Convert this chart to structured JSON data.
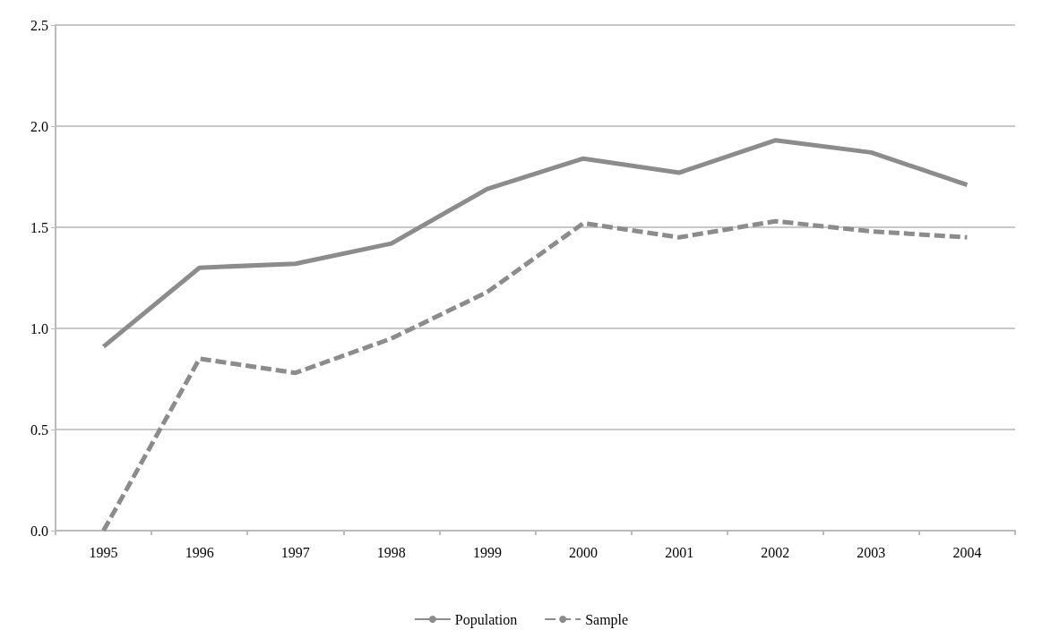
{
  "chart_data": {
    "type": "line",
    "categories": [
      "1995",
      "1996",
      "1997",
      "1998",
      "1999",
      "2000",
      "2001",
      "2002",
      "2003",
      "2004"
    ],
    "series": [
      {
        "name": "Population",
        "color": "#8c8c8c",
        "line_style": "solid",
        "values": [
          0.91,
          1.3,
          1.32,
          1.42,
          1.69,
          1.84,
          1.77,
          1.93,
          1.87,
          1.71
        ]
      },
      {
        "name": "Sample",
        "color": "#8c8c8c",
        "line_style": "dashed",
        "values": [
          0,
          0.85,
          0.78,
          0.95,
          1.18,
          1.52,
          1.45,
          1.53,
          1.48,
          1.45
        ]
      }
    ],
    "ylim": [
      0,
      2.5
    ],
    "yticks": [
      {
        "value": 0,
        "label": "0.0"
      },
      0.5,
      {
        "value": 1,
        "label": "1.0"
      },
      1.5,
      {
        "value": 2,
        "label": "2.0"
      },
      2.5
    ],
    "grid": "y",
    "legend": "bottom",
    "marker": "none"
  }
}
